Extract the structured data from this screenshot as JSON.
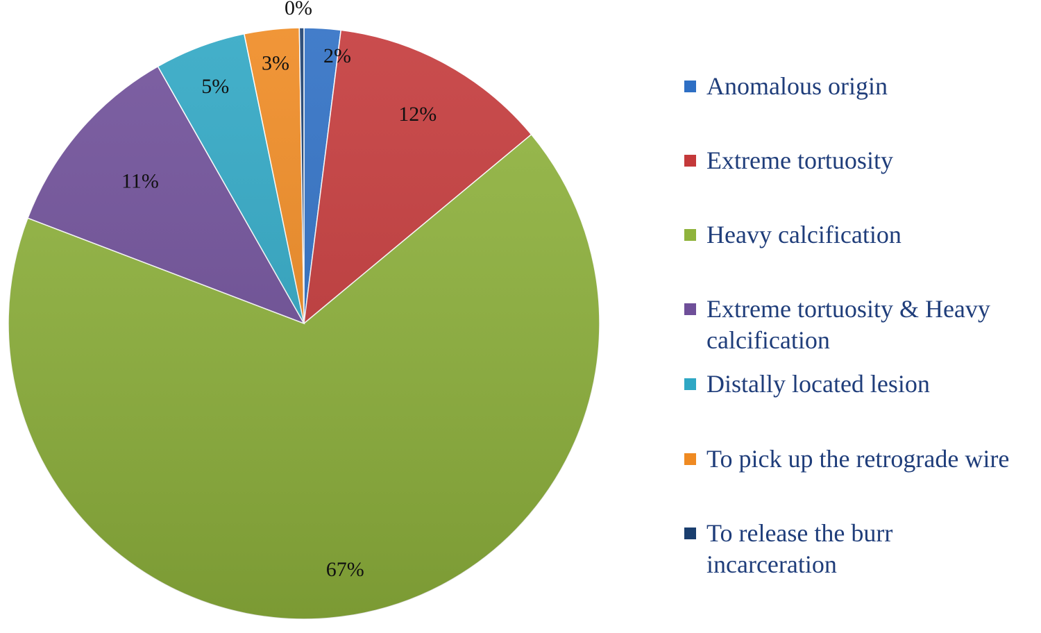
{
  "chart_data": {
    "type": "pie",
    "title": "",
    "slices": [
      {
        "label": "Anomalous origin",
        "value": 2,
        "value_label": "2%",
        "color": "#2e6fc4"
      },
      {
        "label": "Extreme tortuosity",
        "value": 12,
        "value_label": "12%",
        "color": "#c4393a"
      },
      {
        "label": "Heavy calcification",
        "value": 67,
        "value_label": "67%",
        "color": "#8fb33c"
      },
      {
        "label": "Extreme tortuosity & Heavy calcification",
        "value": 11,
        "value_label": "11%",
        "color": "#6f4f99"
      },
      {
        "label": "Distally located lesion",
        "value": 5,
        "value_label": "5%",
        "color": "#2fa7c4"
      },
      {
        "label": "To pick up the retrograde wire",
        "value": 3,
        "value_label": "3%",
        "color": "#ef8a22"
      },
      {
        "label": "To release the burr incarceration",
        "value": 0,
        "value_label": "0%",
        "color": "#1a3e6e"
      }
    ],
    "legend_position": "right"
  }
}
